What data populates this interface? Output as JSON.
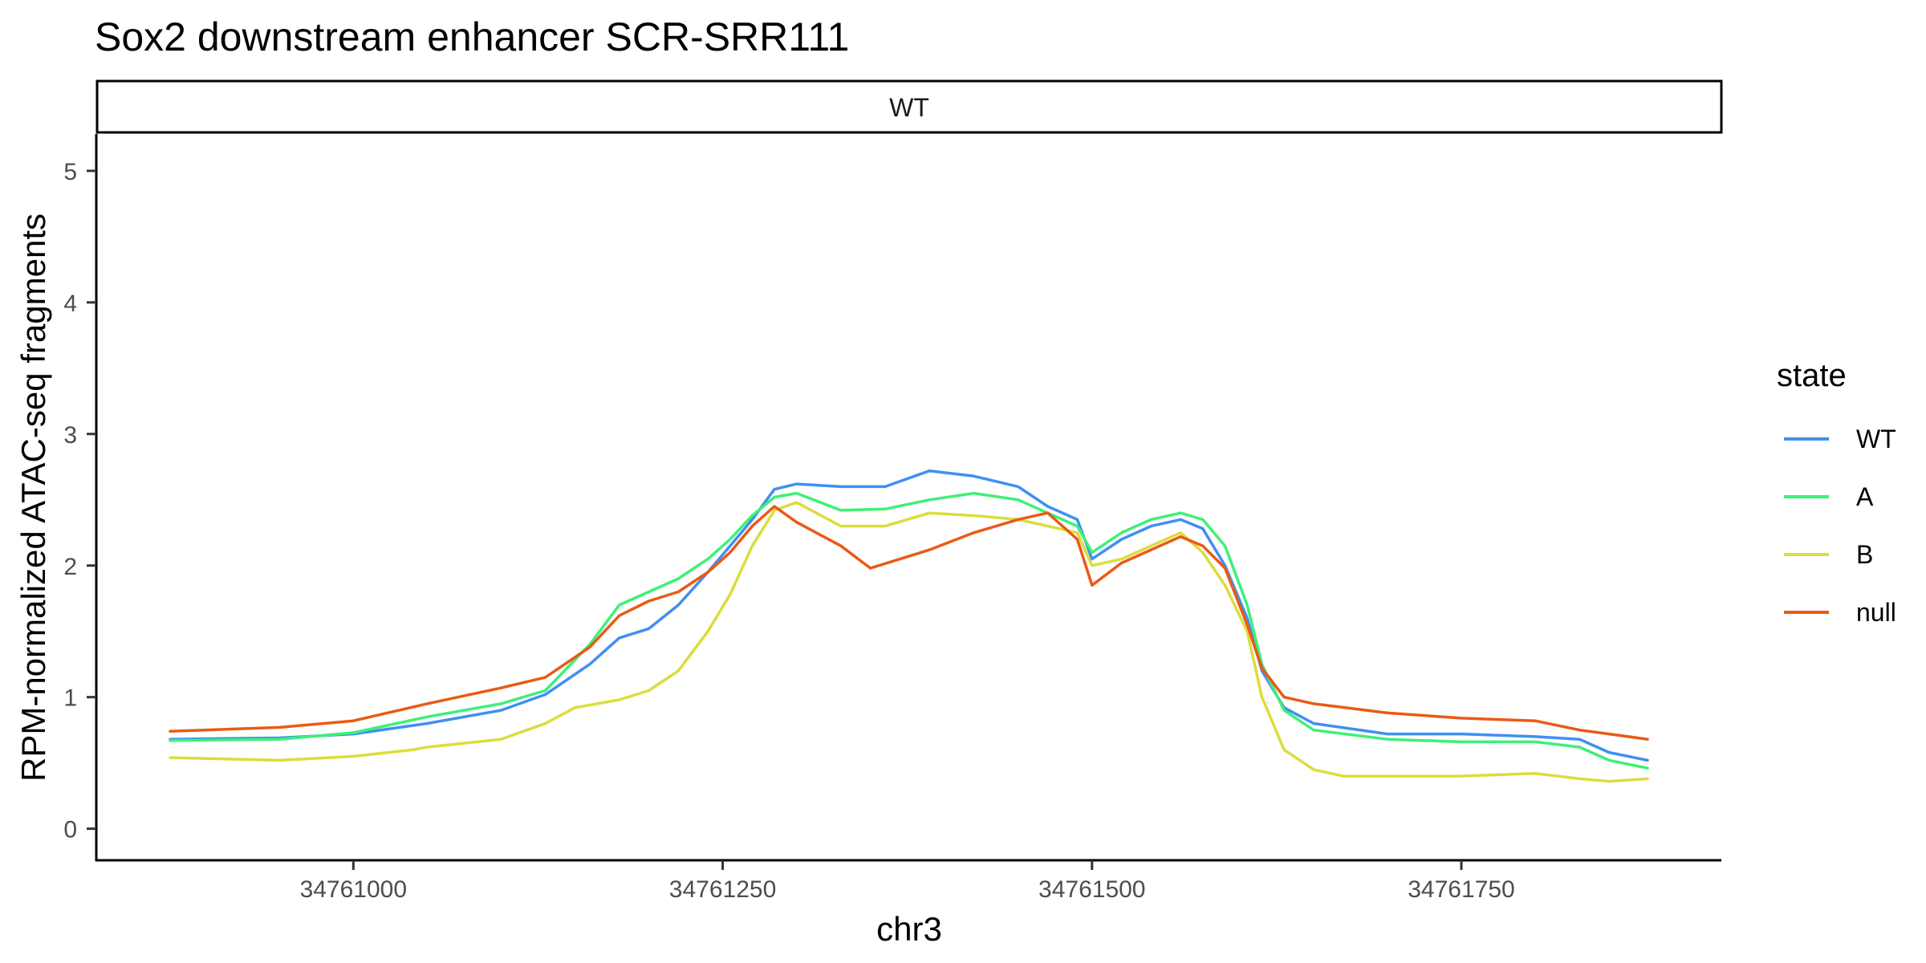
{
  "chart_data": {
    "type": "line",
    "title": "Sox2 downstream enhancer SCR-SRR111",
    "facet": "WT",
    "xlabel": "chr3",
    "ylabel": "RPM-normalized ATAC-seq fragments",
    "xlim": [
      34760826,
      34761926
    ],
    "ylim": [
      -0.24,
      5.28
    ],
    "x_ticks": [
      34761000,
      34761250,
      34761500,
      34761750
    ],
    "x_tick_labels": [
      "34761000",
      "34761250",
      "34761500",
      "34761750"
    ],
    "y_ticks": [
      0,
      1,
      2,
      3,
      4,
      5
    ],
    "y_tick_labels": [
      "0",
      "1",
      "2",
      "3",
      "4",
      "5"
    ],
    "grid": false,
    "legend": {
      "title": "state",
      "position": "right"
    },
    "series": [
      {
        "name": "WT",
        "color": "#3f8ff5",
        "points": [
          [
            34760876,
            0.68
          ],
          [
            34760950,
            0.69
          ],
          [
            34761000,
            0.72
          ],
          [
            34761050,
            0.8
          ],
          [
            34761100,
            0.9
          ],
          [
            34761130,
            1.02
          ],
          [
            34761160,
            1.25
          ],
          [
            34761180,
            1.45
          ],
          [
            34761200,
            1.52
          ],
          [
            34761220,
            1.7
          ],
          [
            34761240,
            1.95
          ],
          [
            34761255,
            2.15
          ],
          [
            34761270,
            2.35
          ],
          [
            34761285,
            2.58
          ],
          [
            34761300,
            2.62
          ],
          [
            34761330,
            2.6
          ],
          [
            34761360,
            2.6
          ],
          [
            34761390,
            2.72
          ],
          [
            34761420,
            2.68
          ],
          [
            34761450,
            2.6
          ],
          [
            34761470,
            2.45
          ],
          [
            34761490,
            2.35
          ],
          [
            34761500,
            2.05
          ],
          [
            34761520,
            2.2
          ],
          [
            34761540,
            2.3
          ],
          [
            34761560,
            2.35
          ],
          [
            34761575,
            2.28
          ],
          [
            34761590,
            2.0
          ],
          [
            34761605,
            1.6
          ],
          [
            34761615,
            1.2
          ],
          [
            34761630,
            0.92
          ],
          [
            34761650,
            0.8
          ],
          [
            34761700,
            0.72
          ],
          [
            34761750,
            0.72
          ],
          [
            34761800,
            0.7
          ],
          [
            34761830,
            0.68
          ],
          [
            34761850,
            0.58
          ],
          [
            34761876,
            0.52
          ]
        ]
      },
      {
        "name": "A",
        "color": "#3ef078",
        "points": [
          [
            34760876,
            0.67
          ],
          [
            34760950,
            0.68
          ],
          [
            34761000,
            0.73
          ],
          [
            34761050,
            0.85
          ],
          [
            34761100,
            0.95
          ],
          [
            34761130,
            1.05
          ],
          [
            34761160,
            1.4
          ],
          [
            34761180,
            1.7
          ],
          [
            34761200,
            1.8
          ],
          [
            34761220,
            1.9
          ],
          [
            34761240,
            2.05
          ],
          [
            34761255,
            2.2
          ],
          [
            34761270,
            2.38
          ],
          [
            34761285,
            2.52
          ],
          [
            34761300,
            2.55
          ],
          [
            34761330,
            2.42
          ],
          [
            34761360,
            2.43
          ],
          [
            34761390,
            2.5
          ],
          [
            34761420,
            2.55
          ],
          [
            34761450,
            2.5
          ],
          [
            34761470,
            2.4
          ],
          [
            34761490,
            2.3
          ],
          [
            34761500,
            2.1
          ],
          [
            34761520,
            2.25
          ],
          [
            34761540,
            2.35
          ],
          [
            34761560,
            2.4
          ],
          [
            34761575,
            2.35
          ],
          [
            34761590,
            2.15
          ],
          [
            34761605,
            1.7
          ],
          [
            34761615,
            1.25
          ],
          [
            34761630,
            0.9
          ],
          [
            34761650,
            0.75
          ],
          [
            34761700,
            0.68
          ],
          [
            34761750,
            0.66
          ],
          [
            34761800,
            0.66
          ],
          [
            34761830,
            0.62
          ],
          [
            34761850,
            0.52
          ],
          [
            34761876,
            0.46
          ]
        ]
      },
      {
        "name": "B",
        "color": "#dcdc3c",
        "points": [
          [
            34760876,
            0.54
          ],
          [
            34760950,
            0.52
          ],
          [
            34761000,
            0.55
          ],
          [
            34761040,
            0.6
          ],
          [
            34761050,
            0.62
          ],
          [
            34761100,
            0.68
          ],
          [
            34761130,
            0.8
          ],
          [
            34761150,
            0.92
          ],
          [
            34761180,
            0.98
          ],
          [
            34761200,
            1.05
          ],
          [
            34761220,
            1.2
          ],
          [
            34761240,
            1.5
          ],
          [
            34761255,
            1.78
          ],
          [
            34761270,
            2.15
          ],
          [
            34761285,
            2.42
          ],
          [
            34761300,
            2.48
          ],
          [
            34761330,
            2.3
          ],
          [
            34761360,
            2.3
          ],
          [
            34761390,
            2.4
          ],
          [
            34761420,
            2.38
          ],
          [
            34761450,
            2.35
          ],
          [
            34761470,
            2.3
          ],
          [
            34761490,
            2.25
          ],
          [
            34761500,
            2.0
          ],
          [
            34761520,
            2.05
          ],
          [
            34761540,
            2.15
          ],
          [
            34761560,
            2.25
          ],
          [
            34761575,
            2.1
          ],
          [
            34761590,
            1.85
          ],
          [
            34761605,
            1.5
          ],
          [
            34761615,
            1.0
          ],
          [
            34761630,
            0.6
          ],
          [
            34761650,
            0.45
          ],
          [
            34761670,
            0.4
          ],
          [
            34761700,
            0.4
          ],
          [
            34761750,
            0.4
          ],
          [
            34761800,
            0.42
          ],
          [
            34761830,
            0.38
          ],
          [
            34761850,
            0.36
          ],
          [
            34761876,
            0.38
          ]
        ]
      },
      {
        "name": "null",
        "color": "#ea5a15",
        "points": [
          [
            34760876,
            0.74
          ],
          [
            34760950,
            0.77
          ],
          [
            34761000,
            0.82
          ],
          [
            34761050,
            0.95
          ],
          [
            34761100,
            1.07
          ],
          [
            34761130,
            1.15
          ],
          [
            34761160,
            1.38
          ],
          [
            34761180,
            1.62
          ],
          [
            34761200,
            1.73
          ],
          [
            34761220,
            1.8
          ],
          [
            34761240,
            1.95
          ],
          [
            34761255,
            2.1
          ],
          [
            34761270,
            2.3
          ],
          [
            34761285,
            2.45
          ],
          [
            34761300,
            2.33
          ],
          [
            34761330,
            2.15
          ],
          [
            34761350,
            1.98
          ],
          [
            34761370,
            2.05
          ],
          [
            34761390,
            2.12
          ],
          [
            34761420,
            2.25
          ],
          [
            34761450,
            2.35
          ],
          [
            34761470,
            2.4
          ],
          [
            34761490,
            2.2
          ],
          [
            34761500,
            1.85
          ],
          [
            34761520,
            2.02
          ],
          [
            34761540,
            2.12
          ],
          [
            34761560,
            2.22
          ],
          [
            34761575,
            2.15
          ],
          [
            34761590,
            1.98
          ],
          [
            34761605,
            1.55
          ],
          [
            34761615,
            1.22
          ],
          [
            34761630,
            1.0
          ],
          [
            34761650,
            0.95
          ],
          [
            34761700,
            0.88
          ],
          [
            34761750,
            0.84
          ],
          [
            34761800,
            0.82
          ],
          [
            34761830,
            0.75
          ],
          [
            34761850,
            0.72
          ],
          [
            34761876,
            0.68
          ]
        ]
      }
    ]
  }
}
